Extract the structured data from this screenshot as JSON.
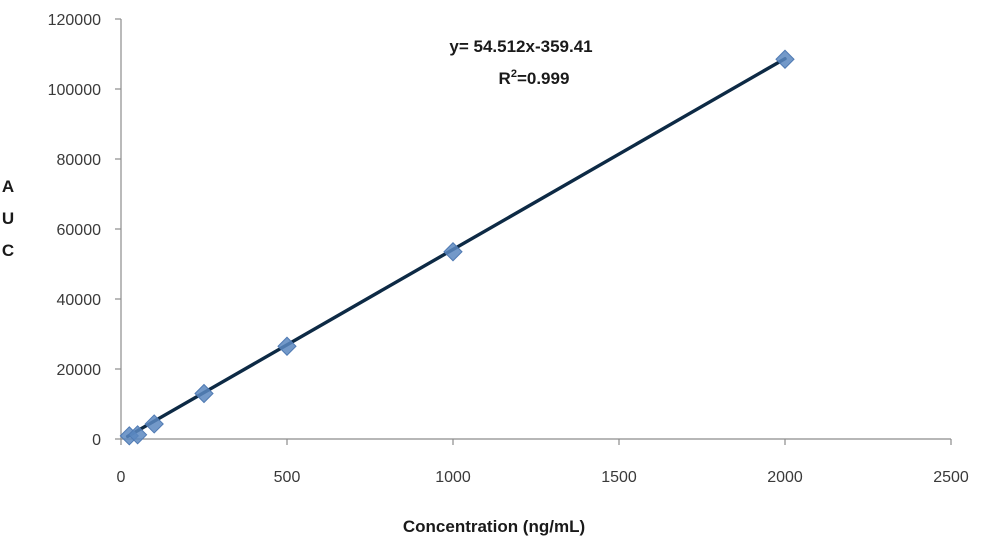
{
  "chart_data": {
    "type": "scatter",
    "title": "",
    "xlabel": "Concentration (ng/mL)",
    "ylabel_letters": [
      "A",
      "U",
      "C"
    ],
    "xlim": [
      0,
      2500
    ],
    "ylim": [
      0,
      120000
    ],
    "x_ticks": [
      0,
      500,
      1000,
      1500,
      2000,
      2500
    ],
    "y_ticks": [
      0,
      20000,
      40000,
      60000,
      80000,
      100000,
      120000
    ],
    "x_tick_labels": [
      "0",
      "500",
      "1000",
      "1500",
      "2000",
      "2500"
    ],
    "y_tick_labels": [
      "0",
      "20000",
      "40000",
      "60000",
      "80000",
      "100000",
      "120000"
    ],
    "grid": false,
    "series": [
      {
        "x": [
          25,
          50,
          100,
          250,
          500,
          1000,
          2000
        ],
        "y": [
          900,
          1200,
          4300,
          13000,
          26500,
          53500,
          108500
        ],
        "color": "#5b87c0",
        "marker": "diamond"
      }
    ],
    "trendline": {
      "slope": 54.512,
      "intercept": -359.41,
      "x_range": [
        20,
        2000
      ],
      "color": "#0d2a45"
    },
    "annotations": {
      "equation": "y= 54.512x-359.41",
      "r2_prefix": "R",
      "r2_sup": "2",
      "r2_suffix": "=0.999"
    }
  }
}
